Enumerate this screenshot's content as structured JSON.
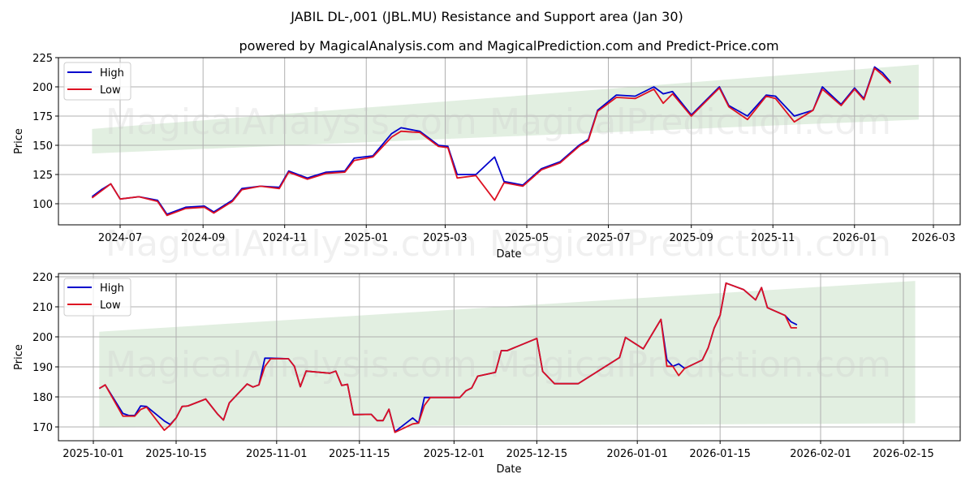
{
  "figure": {
    "title": "JABIL DL-,001 (JBL.MU) Resistance and Support area (Jan 30)",
    "subtitle": "powered by MagicalAnalysis.com and MagicalPrediction.com and Predict-Price.com",
    "watermarks": [
      "MagicalAnalysis.com",
      "MagicalPrediction.com"
    ]
  },
  "colors": {
    "high": "#0000cc",
    "low": "#dd1122",
    "band": "#d5e8d4",
    "grid": "#b0b0b0"
  },
  "chart_data": [
    {
      "type": "line",
      "title": "JABIL DL-,001 (JBL.MU) Resistance and Support area (Jan 30)",
      "xlabel": "Date",
      "ylabel": "Price",
      "ylim": [
        82,
        225
      ],
      "yticks": [
        100,
        125,
        150,
        175,
        200,
        225
      ],
      "xticks": [
        "2024-07",
        "2024-09",
        "2024-11",
        "2025-01",
        "2025-03",
        "2025-05",
        "2025-07",
        "2025-09",
        "2025-11",
        "2026-01",
        "2026-03"
      ],
      "grid": true,
      "legend": {
        "position": "upper left",
        "entries": [
          "High",
          "Low"
        ]
      },
      "band": {
        "x_start": "2024-06-10",
        "x_end": "2026-02-18",
        "lower": [
          143,
          172
        ],
        "upper": [
          164,
          219
        ]
      },
      "x": [
        "2024-06-10",
        "2024-06-17",
        "2024-06-24",
        "2024-07-01",
        "2024-07-15",
        "2024-07-29",
        "2024-08-05",
        "2024-08-19",
        "2024-09-02",
        "2024-09-09",
        "2024-09-23",
        "2024-09-30",
        "2024-10-14",
        "2024-10-28",
        "2024-11-04",
        "2024-11-18",
        "2024-12-02",
        "2024-12-16",
        "2024-12-23",
        "2025-01-06",
        "2025-01-20",
        "2025-01-27",
        "2025-02-10",
        "2025-02-24",
        "2025-03-03",
        "2025-03-10",
        "2025-03-24",
        "2025-04-07",
        "2025-04-14",
        "2025-04-28",
        "2025-05-12",
        "2025-05-26",
        "2025-06-09",
        "2025-06-16",
        "2025-06-23",
        "2025-07-07",
        "2025-07-21",
        "2025-08-04",
        "2025-08-11",
        "2025-08-18",
        "2025-09-01",
        "2025-09-22",
        "2025-09-29",
        "2025-10-13",
        "2025-10-27",
        "2025-11-03",
        "2025-11-17",
        "2025-12-01",
        "2025-12-08",
        "2025-12-22",
        "2026-01-01",
        "2026-01-08",
        "2026-01-16",
        "2026-01-22",
        "2026-01-28"
      ],
      "series": [
        {
          "name": "High",
          "values": [
            106,
            112,
            117,
            104,
            106,
            103,
            91,
            97,
            98,
            93,
            103,
            113,
            115,
            114,
            128,
            122,
            127,
            128,
            139,
            141,
            160,
            165,
            162,
            150,
            149,
            125,
            125,
            140,
            119,
            116,
            130,
            136,
            150,
            155,
            180,
            193,
            192,
            200,
            194,
            196,
            176,
            200,
            184,
            175,
            193,
            192,
            175,
            180,
            200,
            185,
            199,
            190,
            217,
            212,
            204
          ]
        },
        {
          "name": "Low",
          "values": [
            105,
            111,
            117,
            104,
            106,
            102,
            90,
            96,
            97,
            92,
            102,
            112,
            115,
            113,
            127,
            121,
            126,
            127,
            137,
            140,
            157,
            162,
            161,
            149,
            148,
            122,
            124,
            103,
            118,
            115,
            129,
            135,
            149,
            154,
            179,
            191,
            190,
            198,
            186,
            194,
            175,
            199,
            183,
            172,
            192,
            190,
            170,
            180,
            198,
            184,
            198,
            189,
            216,
            210,
            203
          ]
        }
      ]
    },
    {
      "type": "line",
      "xlabel": "Date",
      "ylabel": "Price",
      "ylim": [
        165.5,
        221
      ],
      "yticks": [
        170,
        180,
        190,
        200,
        210,
        220
      ],
      "xticks": [
        "2025-10-01",
        "2025-10-15",
        "2025-11-01",
        "2025-11-15",
        "2025-12-01",
        "2025-12-15",
        "2026-01-01",
        "2026-01-15",
        "2026-02-01",
        "2026-02-15"
      ],
      "grid": true,
      "legend": {
        "position": "upper left",
        "entries": [
          "High",
          "Low"
        ]
      },
      "band": {
        "x_start": "2025-10-02",
        "x_end": "2026-02-17",
        "lower": [
          169.8,
          171.2
        ],
        "upper": [
          201.7,
          218.6
        ]
      },
      "x": [
        "2025-10-02",
        "2025-10-03",
        "2025-10-06",
        "2025-10-07",
        "2025-10-08",
        "2025-10-09",
        "2025-10-10",
        "2025-10-13",
        "2025-10-14",
        "2025-10-15",
        "2025-10-16",
        "2025-10-17",
        "2025-10-20",
        "2025-10-22",
        "2025-10-23",
        "2025-10-24",
        "2025-10-27",
        "2025-10-28",
        "2025-10-29",
        "2025-10-30",
        "2025-10-31",
        "2025-11-03",
        "2025-11-04",
        "2025-11-05",
        "2025-11-06",
        "2025-11-10",
        "2025-11-11",
        "2025-11-12",
        "2025-11-13",
        "2025-11-14",
        "2025-11-17",
        "2025-11-18",
        "2025-11-19",
        "2025-11-20",
        "2025-11-21",
        "2025-11-24",
        "2025-11-25",
        "2025-11-26",
        "2025-11-27",
        "2025-12-01",
        "2025-12-02",
        "2025-12-03",
        "2025-12-04",
        "2025-12-05",
        "2025-12-08",
        "2025-12-09",
        "2025-12-10",
        "2025-12-15",
        "2025-12-16",
        "2025-12-18",
        "2025-12-22",
        "2025-12-29",
        "2025-12-30",
        "2026-01-02",
        "2026-01-05",
        "2026-01-06",
        "2026-01-07",
        "2026-01-08",
        "2026-01-09",
        "2026-01-12",
        "2026-01-13",
        "2026-01-14",
        "2026-01-15",
        "2026-01-16",
        "2026-01-19",
        "2026-01-21",
        "2026-01-22",
        "2026-01-23",
        "2026-01-26",
        "2026-01-27",
        "2026-01-28"
      ],
      "series": [
        {
          "name": "High",
          "values": [
            182.8,
            184.0,
            174.5,
            173.8,
            173.8,
            177.0,
            176.8,
            172.0,
            170.8,
            173.0,
            176.8,
            177.0,
            179.3,
            174.3,
            172.3,
            178.0,
            184.3,
            183.3,
            184.0,
            192.9,
            192.9,
            192.7,
            190.2,
            183.4,
            188.6,
            187.9,
            188.6,
            183.8,
            184.2,
            174.1,
            174.2,
            172.1,
            172.1,
            175.9,
            168.4,
            173.0,
            171.3,
            179.8,
            179.8,
            179.8,
            179.8,
            182.0,
            183.0,
            186.9,
            188.2,
            195.4,
            195.4,
            199.5,
            188.5,
            184.4,
            184.4,
            193.1,
            199.8,
            196.0,
            205.8,
            192.4,
            190.2,
            191.0,
            189.5,
            192.3,
            196.4,
            202.9,
            207.2,
            217.9,
            215.7,
            212.3,
            216.4,
            209.7,
            207.1,
            205.0,
            204.0
          ]
        },
        {
          "name": "Low",
          "values": [
            182.8,
            184.0,
            173.6,
            173.6,
            173.6,
            175.8,
            176.6,
            168.9,
            170.6,
            173.0,
            176.8,
            177.0,
            179.3,
            174.3,
            172.3,
            178.0,
            184.3,
            183.3,
            184.0,
            190.1,
            192.7,
            192.7,
            190.2,
            183.4,
            188.6,
            187.9,
            188.6,
            183.8,
            184.2,
            174.1,
            174.2,
            172.1,
            172.1,
            175.9,
            168.2,
            171.0,
            171.3,
            177.2,
            179.8,
            179.8,
            179.8,
            182.0,
            183.0,
            186.9,
            188.2,
            195.4,
            195.4,
            199.5,
            188.5,
            184.4,
            184.4,
            193.1,
            199.8,
            196.0,
            205.8,
            190.2,
            190.2,
            187.1,
            189.5,
            192.3,
            196.4,
            202.9,
            207.2,
            217.9,
            215.7,
            212.3,
            216.4,
            209.7,
            207.1,
            203.0,
            203.0
          ]
        }
      ]
    }
  ]
}
